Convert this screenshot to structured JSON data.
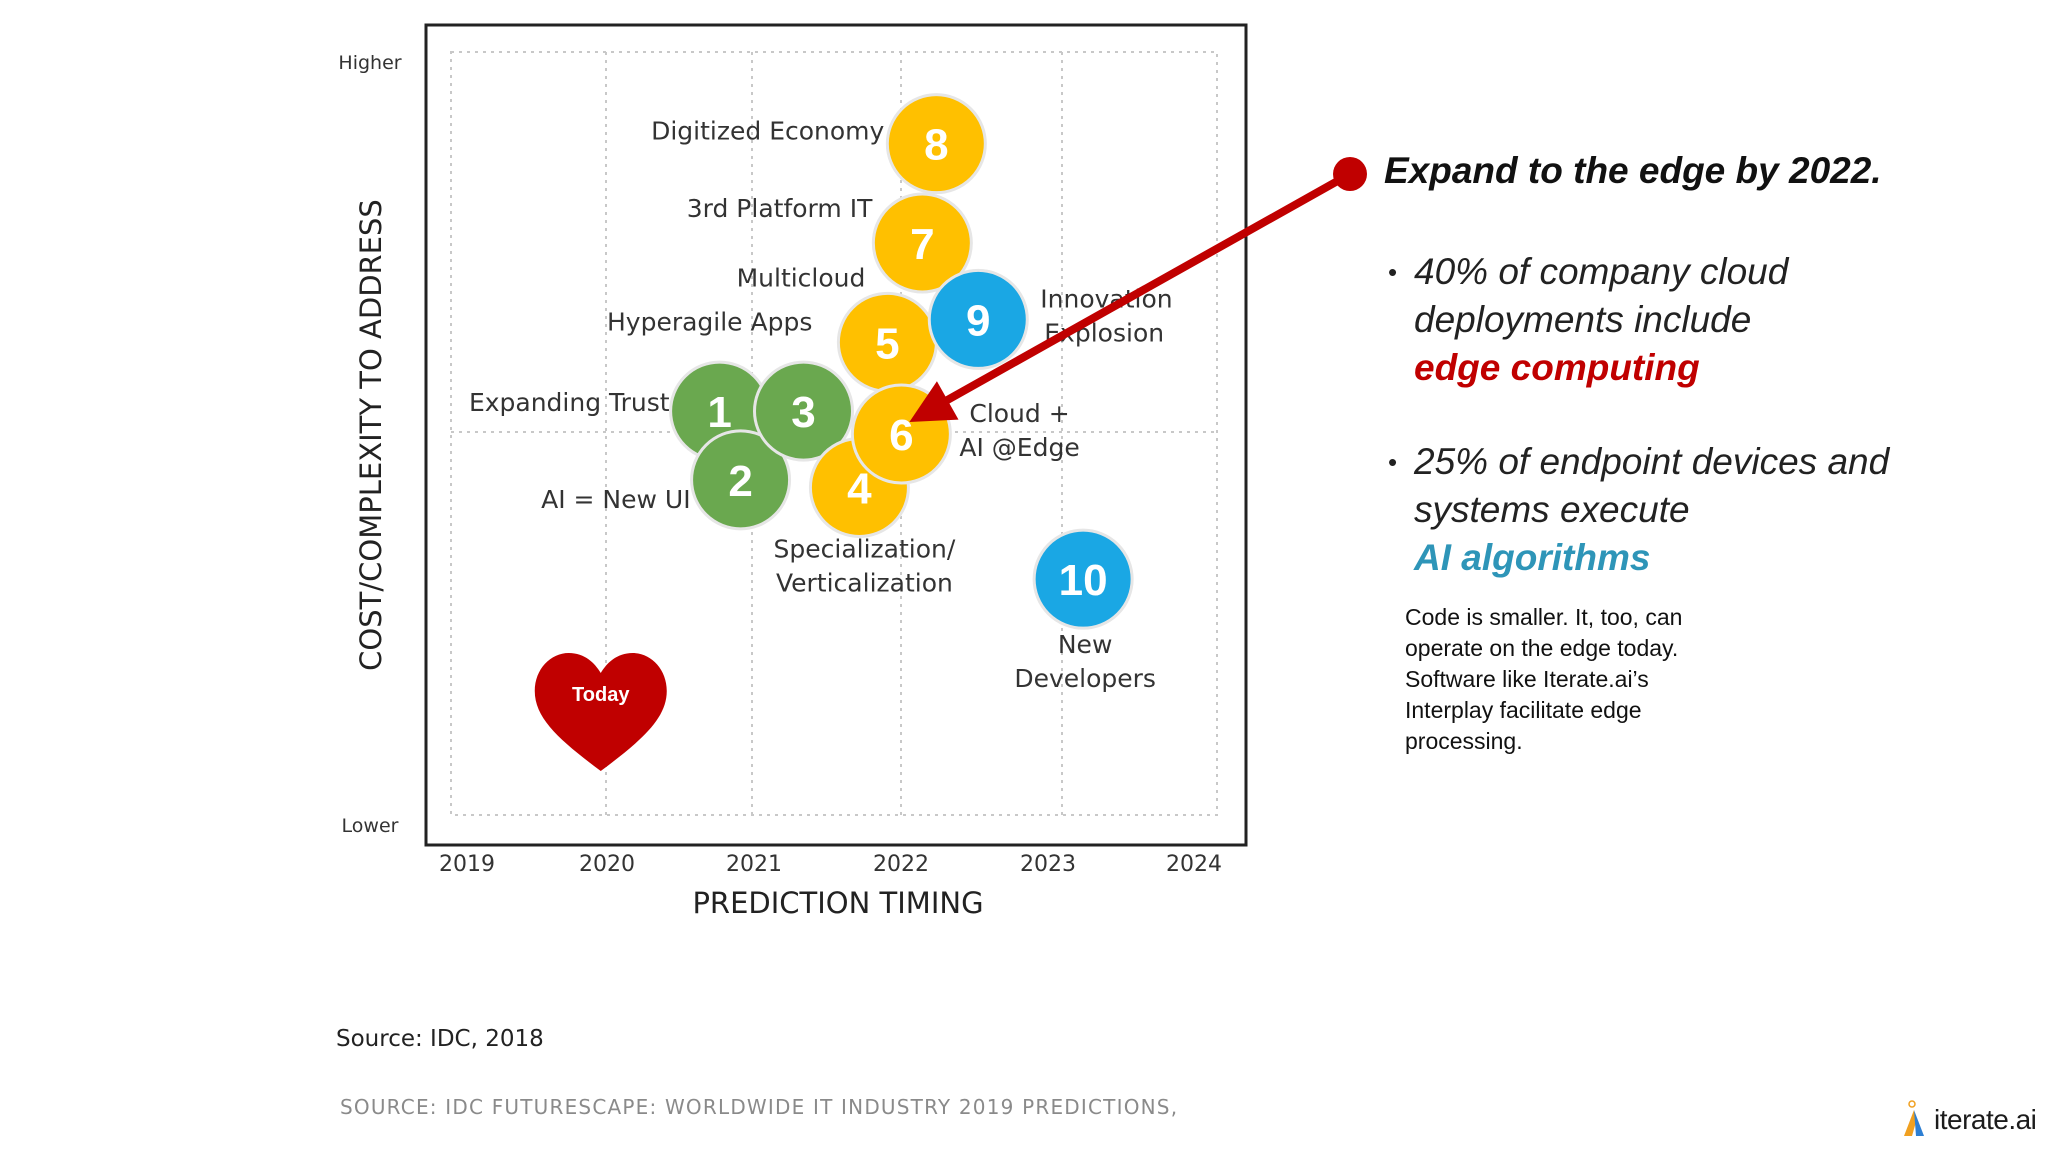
{
  "chart_data": {
    "type": "scatter",
    "xlabel": "PREDICTION TIMING",
    "ylabel": "COST/COMPLEXITY TO ADDRESS",
    "xticks": [
      "2019",
      "2020",
      "2021",
      "2022",
      "2023",
      "2024"
    ],
    "xlim": [
      2018.7,
      2024.2
    ],
    "ylim": [
      0,
      10
    ],
    "yticks": [
      {
        "label": "Lower",
        "y": 0
      },
      {
        "label": "Higher",
        "y": 10
      }
    ],
    "grid": true,
    "points": [
      {
        "id": "1",
        "label": "Expanding Trust",
        "x": 2020.85,
        "y": 5.3,
        "color": "#6aa84f"
      },
      {
        "id": "2",
        "label": "AI = New UI",
        "x": 2021.0,
        "y": 4.4,
        "color": "#6aa84f"
      },
      {
        "id": "3",
        "label": "",
        "x": 2021.45,
        "y": 5.3,
        "color": "#6aa84f"
      },
      {
        "id": "4",
        "label": "Specialization/ Verticalization",
        "x": 2021.85,
        "y": 4.3,
        "color": "#ffc000"
      },
      {
        "id": "5",
        "label": "Hyperagile Apps / Multicloud",
        "x": 2022.05,
        "y": 6.2,
        "color": "#ffc000"
      },
      {
        "id": "6",
        "label": "Cloud + AI @Edge",
        "x": 2022.15,
        "y": 5.0,
        "color": "#ffc000"
      },
      {
        "id": "7",
        "label": "3rd Platform IT",
        "x": 2022.3,
        "y": 7.5,
        "color": "#ffc000"
      },
      {
        "id": "8",
        "label": "Digitized Economy",
        "x": 2022.4,
        "y": 8.8,
        "color": "#ffc000"
      },
      {
        "id": "9",
        "label": "Innovation Explosion",
        "x": 2022.7,
        "y": 6.5,
        "color": "#1aa7e4"
      },
      {
        "id": "10",
        "label": "New Developers",
        "x": 2023.45,
        "y": 3.1,
        "color": "#1aa7e4"
      }
    ],
    "marker": {
      "label": "Today",
      "x": 2020.0,
      "y": 1.4,
      "color": "#c00000"
    }
  },
  "source_line": "Source: IDC, 2018",
  "footer_source": "SOURCE: IDC FUTURESCAPE: WORLDWIDE IT INDUSTRY 2019 PREDICTIONS,",
  "panel": {
    "title": "Expand to the edge by 2022.",
    "bullet1_a": "40% of company cloud deployments include",
    "bullet1_b": "edge computing",
    "bullet2_a": "25% of endpoint devices and systems execute",
    "bullet2_b": "AI algorithms",
    "note": "Code is smaller. It, too, can operate on the edge today. Software like Iterate.ai’s Interplay facilitate edge processing.",
    "bullet_glyph": "•",
    "callout_color": "#c00000"
  },
  "logo": {
    "text": "iterate.ai",
    "icon": "iterate-logo-icon"
  }
}
